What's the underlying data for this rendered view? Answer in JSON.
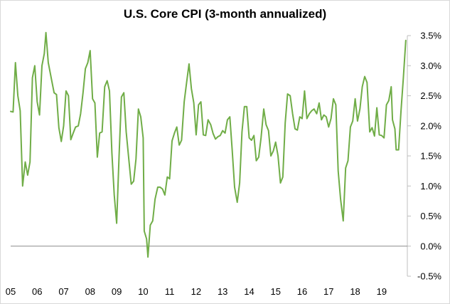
{
  "chart_data": {
    "type": "line",
    "title": "U.S. Core CPI (3-month annualized)",
    "xlabel": "",
    "ylabel": "",
    "ylim": [
      -0.5,
      3.5
    ],
    "xlim": [
      2005.0,
      2019.97
    ],
    "y_ticks": [
      {
        "value": 3.5,
        "label": "3.5%"
      },
      {
        "value": 3.0,
        "label": "3.0%"
      },
      {
        "value": 2.5,
        "label": "2.5%"
      },
      {
        "value": 2.0,
        "label": "2.0%"
      },
      {
        "value": 1.5,
        "label": "1.5%"
      },
      {
        "value": 1.0,
        "label": "1.0%"
      },
      {
        "value": 0.5,
        "label": "0.5%"
      },
      {
        "value": 0.0,
        "label": "0.0%"
      },
      {
        "value": -0.5,
        "label": "-0.5%"
      }
    ],
    "x_ticks": [
      {
        "value": 2005,
        "label": "05"
      },
      {
        "value": 2006,
        "label": "06"
      },
      {
        "value": 2007,
        "label": "07"
      },
      {
        "value": 2008,
        "label": "08"
      },
      {
        "value": 2009,
        "label": "09"
      },
      {
        "value": 2010,
        "label": "10"
      },
      {
        "value": 2011,
        "label": "11"
      },
      {
        "value": 2012,
        "label": "12"
      },
      {
        "value": 2013,
        "label": "13"
      },
      {
        "value": 2014,
        "label": "14"
      },
      {
        "value": 2015,
        "label": "15"
      },
      {
        "value": 2016,
        "label": "16"
      },
      {
        "value": 2017,
        "label": "17"
      },
      {
        "value": 2018,
        "label": "18"
      },
      {
        "value": 2019,
        "label": "19"
      }
    ],
    "grid": false,
    "legend": "none",
    "series": [
      {
        "color": "#70ad47",
        "points": [
          [
            2005.0,
            2.24
          ],
          [
            2005.09,
            2.23
          ],
          [
            2005.18,
            3.05
          ],
          [
            2005.27,
            2.5
          ],
          [
            2005.36,
            2.25
          ],
          [
            2005.45,
            1.0
          ],
          [
            2005.55,
            1.4
          ],
          [
            2005.64,
            1.18
          ],
          [
            2005.73,
            1.4
          ],
          [
            2005.82,
            2.8
          ],
          [
            2005.91,
            3.0
          ],
          [
            2006.0,
            2.4
          ],
          [
            2006.09,
            2.18
          ],
          [
            2006.18,
            3.0
          ],
          [
            2006.27,
            3.2
          ],
          [
            2006.33,
            3.55
          ],
          [
            2006.42,
            3.05
          ],
          [
            2006.55,
            2.75
          ],
          [
            2006.64,
            2.55
          ],
          [
            2006.73,
            2.52
          ],
          [
            2006.82,
            1.97
          ],
          [
            2006.91,
            1.74
          ],
          [
            2007.0,
            2.0
          ],
          [
            2007.09,
            2.58
          ],
          [
            2007.18,
            2.5
          ],
          [
            2007.27,
            1.77
          ],
          [
            2007.36,
            1.88
          ],
          [
            2007.45,
            1.98
          ],
          [
            2007.55,
            2.0
          ],
          [
            2007.64,
            2.2
          ],
          [
            2007.73,
            2.55
          ],
          [
            2007.82,
            2.95
          ],
          [
            2007.91,
            3.05
          ],
          [
            2008.0,
            3.25
          ],
          [
            2008.09,
            2.45
          ],
          [
            2008.18,
            2.38
          ],
          [
            2008.27,
            1.48
          ],
          [
            2008.36,
            1.88
          ],
          [
            2008.45,
            1.9
          ],
          [
            2008.55,
            2.65
          ],
          [
            2008.64,
            2.75
          ],
          [
            2008.73,
            2.58
          ],
          [
            2008.82,
            1.55
          ],
          [
            2008.91,
            0.85
          ],
          [
            2009.0,
            0.38
          ],
          [
            2009.09,
            1.5
          ],
          [
            2009.18,
            2.48
          ],
          [
            2009.27,
            2.55
          ],
          [
            2009.36,
            1.9
          ],
          [
            2009.45,
            1.48
          ],
          [
            2009.55,
            1.03
          ],
          [
            2009.64,
            1.08
          ],
          [
            2009.73,
            1.45
          ],
          [
            2009.82,
            2.28
          ],
          [
            2009.91,
            2.15
          ],
          [
            2010.0,
            1.8
          ],
          [
            2010.04,
            0.25
          ],
          [
            2010.13,
            0.12
          ],
          [
            2010.18,
            -0.18
          ],
          [
            2010.27,
            0.35
          ],
          [
            2010.36,
            0.42
          ],
          [
            2010.45,
            0.78
          ],
          [
            2010.55,
            0.98
          ],
          [
            2010.64,
            0.98
          ],
          [
            2010.73,
            0.95
          ],
          [
            2010.82,
            0.85
          ],
          [
            2010.91,
            1.15
          ],
          [
            2011.0,
            1.12
          ],
          [
            2011.09,
            1.75
          ],
          [
            2011.18,
            1.88
          ],
          [
            2011.27,
            1.98
          ],
          [
            2011.36,
            1.68
          ],
          [
            2011.45,
            1.76
          ],
          [
            2011.55,
            2.4
          ],
          [
            2011.64,
            2.72
          ],
          [
            2011.73,
            3.03
          ],
          [
            2011.82,
            2.62
          ],
          [
            2011.91,
            2.38
          ],
          [
            2012.0,
            1.85
          ],
          [
            2012.09,
            2.35
          ],
          [
            2012.18,
            2.4
          ],
          [
            2012.27,
            1.85
          ],
          [
            2012.36,
            1.84
          ],
          [
            2012.45,
            2.1
          ],
          [
            2012.55,
            2.02
          ],
          [
            2012.64,
            1.87
          ],
          [
            2012.73,
            1.78
          ],
          [
            2012.82,
            1.82
          ],
          [
            2012.91,
            1.84
          ],
          [
            2013.0,
            1.92
          ],
          [
            2013.09,
            1.88
          ],
          [
            2013.18,
            2.1
          ],
          [
            2013.27,
            2.15
          ],
          [
            2013.36,
            1.6
          ],
          [
            2013.45,
            0.98
          ],
          [
            2013.55,
            0.73
          ],
          [
            2013.64,
            1.05
          ],
          [
            2013.73,
            1.9
          ],
          [
            2013.82,
            2.32
          ],
          [
            2013.91,
            2.32
          ],
          [
            2014.0,
            1.8
          ],
          [
            2014.09,
            1.76
          ],
          [
            2014.18,
            1.84
          ],
          [
            2014.27,
            1.42
          ],
          [
            2014.36,
            1.48
          ],
          [
            2014.45,
            1.8
          ],
          [
            2014.55,
            2.28
          ],
          [
            2014.64,
            2.02
          ],
          [
            2014.73,
            1.92
          ],
          [
            2014.82,
            1.5
          ],
          [
            2014.91,
            1.58
          ],
          [
            2015.0,
            1.73
          ],
          [
            2015.09,
            1.5
          ],
          [
            2015.18,
            1.05
          ],
          [
            2015.27,
            1.15
          ],
          [
            2015.36,
            2.05
          ],
          [
            2015.45,
            2.53
          ],
          [
            2015.55,
            2.5
          ],
          [
            2015.64,
            2.2
          ],
          [
            2015.73,
            1.95
          ],
          [
            2015.82,
            1.93
          ],
          [
            2015.91,
            2.15
          ],
          [
            2016.0,
            2.12
          ],
          [
            2016.09,
            2.58
          ],
          [
            2016.18,
            2.12
          ],
          [
            2016.27,
            2.2
          ],
          [
            2016.36,
            2.25
          ],
          [
            2016.45,
            2.28
          ],
          [
            2016.55,
            2.2
          ],
          [
            2016.64,
            2.38
          ],
          [
            2016.73,
            2.1
          ],
          [
            2016.82,
            2.18
          ],
          [
            2016.91,
            2.15
          ],
          [
            2017.0,
            1.98
          ],
          [
            2017.09,
            2.12
          ],
          [
            2017.18,
            2.45
          ],
          [
            2017.27,
            2.35
          ],
          [
            2017.36,
            1.25
          ],
          [
            2017.45,
            0.78
          ],
          [
            2017.55,
            0.42
          ],
          [
            2017.64,
            1.3
          ],
          [
            2017.73,
            1.42
          ],
          [
            2017.82,
            1.98
          ],
          [
            2017.91,
            2.08
          ],
          [
            2018.0,
            2.45
          ],
          [
            2018.09,
            2.08
          ],
          [
            2018.18,
            2.28
          ],
          [
            2018.27,
            2.65
          ],
          [
            2018.36,
            2.82
          ],
          [
            2018.45,
            2.72
          ],
          [
            2018.55,
            1.9
          ],
          [
            2018.64,
            1.97
          ],
          [
            2018.73,
            1.83
          ],
          [
            2018.82,
            2.3
          ],
          [
            2018.91,
            1.85
          ],
          [
            2019.0,
            1.84
          ],
          [
            2019.09,
            1.8
          ],
          [
            2019.18,
            2.35
          ],
          [
            2019.27,
            2.42
          ],
          [
            2019.36,
            2.65
          ],
          [
            2019.41,
            2.1
          ],
          [
            2019.5,
            1.95
          ],
          [
            2019.55,
            1.6
          ],
          [
            2019.64,
            1.6
          ],
          [
            2019.73,
            2.25
          ],
          [
            2019.82,
            2.8
          ],
          [
            2019.91,
            3.42
          ]
        ]
      }
    ]
  }
}
